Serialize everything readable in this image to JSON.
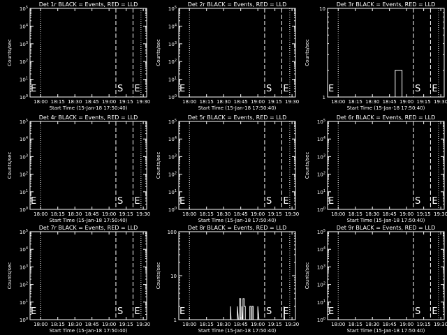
{
  "figure": {
    "background": "#000000",
    "foreground": "#ffffff",
    "event_color": "#ffffff",
    "lld_color": "#ff0000"
  },
  "chart_data": [
    {
      "type": "line",
      "title": "Det 1r BLACK = Events, RED = LLD",
      "xlabel": "Start Time (15-Jan-18 17:50:40)",
      "ylabel": "Counts/sec",
      "x_tick_labels": [
        "18:00",
        "18:15",
        "18:30",
        "18:45",
        "19:00",
        "19:15",
        "19:30"
      ],
      "y_scale": "log",
      "ylim": [
        1,
        100000
      ],
      "y_tick_labels": [
        "10^0",
        "10^1",
        "10^2",
        "10^3",
        "10^4",
        "10^5"
      ],
      "markers": [
        {
          "label": "S",
          "time": "19:06"
        },
        {
          "label": "E",
          "time": "19:21"
        }
      ],
      "series": []
    },
    {
      "type": "line",
      "title": "Det 2r BLACK = Events, RED = LLD",
      "xlabel": "Start Time (15-Jan-18 17:50:40)",
      "ylabel": "Counts/sec",
      "x_tick_labels": [
        "18:00",
        "18:15",
        "18:30",
        "18:45",
        "19:00",
        "19:15",
        "19:30"
      ],
      "y_scale": "log",
      "ylim": [
        1,
        100000
      ],
      "y_tick_labels": [
        "10^0",
        "10^1",
        "10^2",
        "10^3",
        "10^4",
        "10^5"
      ],
      "markers": [
        {
          "label": "S",
          "time": "19:06"
        },
        {
          "label": "E",
          "time": "19:21"
        }
      ],
      "series": []
    },
    {
      "type": "line",
      "title": "Det 3r BLACK = Events, RED = LLD",
      "xlabel": "Start Time (15-Jan-18 17:50:40)",
      "ylabel": "Counts/sec",
      "x_tick_labels": [
        "18:00",
        "18:15",
        "18:30",
        "18:45",
        "19:00",
        "19:15",
        "19:30"
      ],
      "y_scale": "log",
      "ylim": [
        1,
        10
      ],
      "y_tick_labels": [
        "1",
        "10"
      ],
      "markers": [
        {
          "label": "S",
          "time": "19:06"
        },
        {
          "label": "E",
          "time": "19:21"
        }
      ],
      "series": [
        {
          "points": [
            [
              "18:50",
              1
            ],
            [
              "18:50",
              2
            ],
            [
              "18:56",
              2
            ],
            [
              "18:56",
              1
            ]
          ]
        }
      ]
    },
    {
      "type": "line",
      "title": "Det 4r BLACK = Events, RED = LLD",
      "xlabel": "Start Time (15-Jan-18 17:50:40)",
      "ylabel": "Counts/sec",
      "x_tick_labels": [
        "18:00",
        "18:15",
        "18:30",
        "18:45",
        "19:00",
        "19:15",
        "19:30"
      ],
      "y_scale": "log",
      "ylim": [
        1,
        100000
      ],
      "y_tick_labels": [
        "10^0",
        "10^1",
        "10^2",
        "10^3",
        "10^4",
        "10^5"
      ],
      "markers": [
        {
          "label": "S",
          "time": "19:06"
        },
        {
          "label": "E",
          "time": "19:21"
        }
      ],
      "series": []
    },
    {
      "type": "line",
      "title": "Det 5r BLACK = Events, RED = LLD",
      "xlabel": "Start Time (15-Jan-18 17:50:40)",
      "ylabel": "Counts/sec",
      "x_tick_labels": [
        "18:00",
        "18:15",
        "18:30",
        "18:45",
        "19:00",
        "19:15",
        "19:30"
      ],
      "y_scale": "log",
      "ylim": [
        1,
        100000
      ],
      "y_tick_labels": [
        "10^0",
        "10^1",
        "10^2",
        "10^3",
        "10^4",
        "10^5"
      ],
      "markers": [
        {
          "label": "S",
          "time": "19:06"
        },
        {
          "label": "E",
          "time": "19:21"
        }
      ],
      "series": []
    },
    {
      "type": "line",
      "title": "Det 6r BLACK = Events, RED = LLD",
      "xlabel": "Start Time (15-Jan-18 17:50:40)",
      "ylabel": "Counts/sec",
      "x_tick_labels": [
        "18:00",
        "18:15",
        "18:30",
        "18:45",
        "19:00",
        "19:15",
        "19:30"
      ],
      "y_scale": "log",
      "ylim": [
        1,
        100000
      ],
      "y_tick_labels": [
        "10^0",
        "10^1",
        "10^2",
        "10^3",
        "10^4",
        "10^5"
      ],
      "markers": [
        {
          "label": "S",
          "time": "19:06"
        },
        {
          "label": "E",
          "time": "19:21"
        }
      ],
      "series": []
    },
    {
      "type": "line",
      "title": "Det 7r BLACK = Events, RED = LLD",
      "xlabel": "Start Time (15-Jan-18 17:50:40)",
      "ylabel": "Counts/sec",
      "x_tick_labels": [
        "18:00",
        "18:15",
        "18:30",
        "18:45",
        "19:00",
        "19:15",
        "19:30"
      ],
      "y_scale": "log",
      "ylim": [
        1,
        100000
      ],
      "y_tick_labels": [
        "10^0",
        "10^1",
        "10^2",
        "10^3",
        "10^4",
        "10^5"
      ],
      "markers": [
        {
          "label": "S",
          "time": "19:06"
        },
        {
          "label": "E",
          "time": "19:21"
        }
      ],
      "series": []
    },
    {
      "type": "line",
      "title": "Det 8r BLACK = Events, RED = LLD",
      "xlabel": "Start Time (15-Jan-18 17:50:40)",
      "ylabel": "Counts/sec",
      "x_tick_labels": [
        "18:00",
        "18:15",
        "18:30",
        "18:45",
        "19:00",
        "19:15",
        "19:30"
      ],
      "y_scale": "log",
      "ylim": [
        1,
        100
      ],
      "y_tick_labels": [
        "1",
        "10",
        "100"
      ],
      "markers": [
        {
          "label": "S",
          "time": "19:06"
        },
        {
          "label": "E",
          "time": "19:21"
        }
      ],
      "series": [
        {
          "points": [
            [
              "18:36",
              1
            ],
            [
              "18:36",
              2
            ],
            [
              "18:36.5",
              1
            ],
            [
              "18:42",
              1
            ],
            [
              "18:42",
              2
            ],
            [
              "18:43",
              1
            ],
            [
              "18:44",
              1
            ],
            [
              "18:44",
              3
            ],
            [
              "18:45",
              3
            ],
            [
              "18:45",
              1
            ],
            [
              "18:46",
              1
            ],
            [
              "18:46",
              2
            ],
            [
              "18:46.5",
              1
            ],
            [
              "18:47",
              1
            ],
            [
              "18:47",
              3
            ],
            [
              "18:48",
              3
            ],
            [
              "18:48",
              2
            ],
            [
              "18:49",
              2
            ],
            [
              "18:49",
              1
            ],
            [
              "18:53",
              1
            ],
            [
              "18:53",
              2
            ],
            [
              "18:54",
              2
            ],
            [
              "18:54",
              1
            ],
            [
              "18:55",
              1
            ],
            [
              "18:55",
              2
            ],
            [
              "18:56",
              2
            ],
            [
              "18:56",
              1
            ],
            [
              "19:00",
              1
            ],
            [
              "19:00",
              2
            ],
            [
              "19:01",
              1
            ],
            [
              "19:23",
              1
            ],
            [
              "19:23",
              2
            ],
            [
              "19:23.5",
              1
            ]
          ]
        }
      ]
    },
    {
      "type": "line",
      "title": "Det 9r BLACK = Events, RED = LLD",
      "xlabel": "Start Time (15-Jan-18 17:50:40)",
      "ylabel": "Counts/sec",
      "x_tick_labels": [
        "18:00",
        "18:15",
        "18:30",
        "18:45",
        "19:00",
        "19:15",
        "19:30"
      ],
      "y_scale": "log",
      "ylim": [
        1,
        100000
      ],
      "y_tick_labels": [
        "10^0",
        "10^1",
        "10^2",
        "10^3",
        "10^4",
        "10^5"
      ],
      "markers": [
        {
          "label": "S",
          "time": "19:06"
        },
        {
          "label": "E",
          "time": "19:21"
        }
      ],
      "series": []
    }
  ]
}
